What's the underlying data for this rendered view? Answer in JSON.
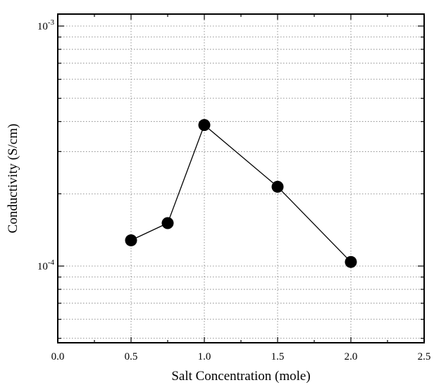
{
  "chart_data": {
    "type": "line",
    "xlabel": "Salt Concentration (mole)",
    "ylabel": "Conductivity (S/cm)",
    "xlim": [
      0.0,
      2.5
    ],
    "ylim": [
      5e-05,
      0.001
    ],
    "yscale": "log",
    "grid": true,
    "x_ticks": [
      "0.0",
      "0.5",
      "1.0",
      "1.5",
      "2.0",
      "2.5"
    ],
    "y_tick_labels": [
      {
        "value": 0.001,
        "base": "10",
        "exp": "-3"
      },
      {
        "value": 0.0001,
        "base": "10",
        "exp": "-4"
      }
    ],
    "series": [
      {
        "x": [
          0.5,
          0.75,
          1.0,
          1.5,
          2.0
        ],
        "y": [
          0.000128,
          0.000151,
          0.000387,
          0.000214,
          0.000104
        ],
        "marker": "circle",
        "color": "#000000"
      }
    ]
  }
}
